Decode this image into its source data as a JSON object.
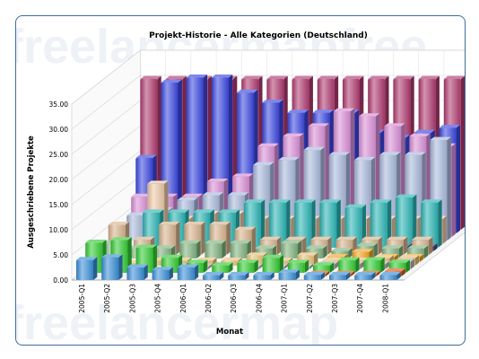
{
  "watermark": {
    "line1": "freelancermapfree",
    "line2": "freelancermap"
  },
  "chart_data": {
    "type": "bar",
    "title": "Projekt-Historie - Alle Kategorien (Deutschland)",
    "xlabel": "Monat",
    "ylabel": "Ausgeschriebene Projekte",
    "ylim": [
      0,
      35
    ],
    "y_ticks": [
      "0.00",
      "5.00",
      "10.00",
      "15.00",
      "20.00",
      "25.00",
      "30.00",
      "35.00"
    ],
    "grid": true,
    "legend": "none",
    "categories": [
      "2005-Q1",
      "2005-Q2",
      "2005-Q3",
      "2005-Q4",
      "2006-Q1",
      "2006-Q2",
      "2006-Q3",
      "2006-Q4",
      "2007-Q1",
      "2007-Q2",
      "2007-Q3",
      "2007-Q4",
      "2008-Q1"
    ],
    "series": [
      {
        "color": "#3a8fd8",
        "values": [
          4,
          4.5,
          2.5,
          2,
          2.5,
          1,
          1,
          1,
          1.5,
          1,
          1,
          1,
          1
        ]
      },
      {
        "color": "#e05a1e",
        "values": [
          0,
          0,
          0,
          0,
          0,
          0,
          0,
          0,
          0,
          0.5,
          0.5,
          0.5,
          1
        ]
      },
      {
        "color": "#33cc33",
        "values": [
          6,
          6.5,
          5,
          3,
          2,
          1.5,
          2,
          3,
          2,
          1.5,
          2.5,
          2.5,
          2
        ]
      },
      {
        "color": "#b7b7b7",
        "values": [
          0,
          0,
          0,
          0.5,
          0.5,
          0,
          0.5,
          0.5,
          0.5,
          1,
          1,
          1,
          1.5
        ]
      },
      {
        "color": "#e8c27c",
        "values": [
          1,
          0.5,
          1,
          1,
          1,
          1,
          2,
          1,
          2,
          1,
          1,
          1.5,
          1.5
        ]
      },
      {
        "color": "#f5a623",
        "values": [
          0,
          0,
          0,
          0,
          0,
          0,
          0,
          0,
          0,
          1,
          2,
          1,
          1
        ]
      },
      {
        "color": "#7fb27f",
        "values": [
          3,
          2,
          2,
          3,
          3,
          3,
          2,
          3,
          2,
          1.5,
          2.5,
          2,
          2
        ]
      },
      {
        "color": "#d8b38d",
        "values": [
          6,
          3,
          6,
          6,
          6,
          5,
          3,
          3,
          3,
          3,
          3,
          3,
          3
        ]
      },
      {
        "color": "#4a4a7a",
        "values": [
          0,
          0,
          0,
          0,
          0,
          0,
          0,
          0,
          0,
          0,
          0,
          1,
          1
        ]
      },
      {
        "color": "#2ab5b5",
        "values": [
          0,
          7,
          7,
          7,
          7,
          9,
          9,
          9,
          9,
          8,
          9,
          10,
          9
        ]
      },
      {
        "color": "#eec9a8",
        "values": [
          0,
          12,
          5,
          6,
          6,
          5,
          5,
          5,
          5,
          5,
          5,
          5,
          5
        ]
      },
      {
        "color": "#a9b9dc",
        "values": [
          5,
          6,
          8,
          9,
          9,
          15,
          16,
          18,
          17,
          16,
          17,
          17,
          20
        ]
      },
      {
        "color": "#d98fd6",
        "values": [
          8,
          8,
          8,
          11,
          12,
          18,
          20,
          22,
          25,
          24,
          22,
          20,
          18
        ]
      },
      {
        "color": "#3a47e0",
        "values": [
          15,
          30,
          31,
          31,
          28,
          26,
          24,
          24,
          24,
          20,
          19,
          20,
          21
        ]
      },
      {
        "color": "#b03a70",
        "values": [
          30,
          30,
          30,
          30,
          30,
          30,
          30,
          30,
          30,
          30,
          30,
          30,
          30
        ]
      }
    ]
  }
}
